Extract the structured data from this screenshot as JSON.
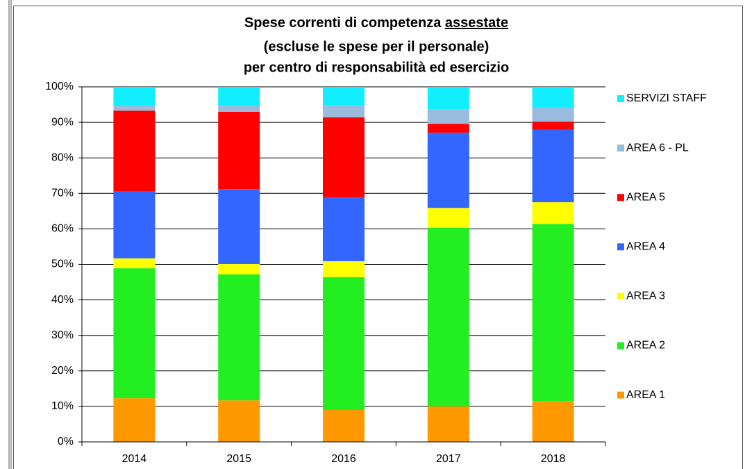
{
  "chart_data": {
    "type": "stacked_bar",
    "title": "Spese correnti di competenza",
    "title_underlined": "assestate",
    "subtitle": [
      "(escluse le spese per il personale)",
      "per centro di responsabilità ed esercizio"
    ],
    "categories": [
      "2014",
      "2015",
      "2016",
      "2017",
      "2018"
    ],
    "series": [
      {
        "name": "AREA 1",
        "color": "#ff9900",
        "values": [
          12.3,
          11.7,
          9.0,
          10.0,
          11.5
        ]
      },
      {
        "name": "AREA 2",
        "color": "#22ee22",
        "values": [
          36.6,
          35.5,
          37.4,
          50.3,
          49.9
        ]
      },
      {
        "name": "AREA 3",
        "color": "#ffff00",
        "values": [
          2.8,
          2.9,
          4.5,
          5.6,
          6.1
        ]
      },
      {
        "name": "AREA 4",
        "color": "#3366ff",
        "values": [
          18.8,
          21.1,
          18.0,
          21.2,
          20.4
        ]
      },
      {
        "name": "AREA 5",
        "color": "#ff0000",
        "values": [
          22.8,
          21.8,
          22.5,
          2.5,
          2.3
        ]
      },
      {
        "name": "AREA 6 - PL",
        "color": "#99bbdd",
        "values": [
          1.4,
          1.7,
          3.5,
          4.1,
          3.9
        ]
      },
      {
        "name": "SERVIZI STAFF",
        "color": "#11eeff",
        "values": [
          5.3,
          5.3,
          5.1,
          6.3,
          5.9
        ]
      }
    ],
    "ylim": [
      0,
      100
    ],
    "yticks": [
      {
        "value": 0,
        "label": "0%"
      },
      {
        "value": 10,
        "label": "10%"
      },
      {
        "value": 20,
        "label": "20%"
      },
      {
        "value": 30,
        "label": "30%"
      },
      {
        "value": 40,
        "label": "40%"
      },
      {
        "value": 50,
        "label": "50%"
      },
      {
        "value": 60,
        "label": "60%"
      },
      {
        "value": 70,
        "label": "70%"
      },
      {
        "value": 80,
        "label": "80%"
      },
      {
        "value": 90,
        "label": "90%"
      },
      {
        "value": 100,
        "label": "100%"
      }
    ],
    "grid": true,
    "legend": "right"
  }
}
